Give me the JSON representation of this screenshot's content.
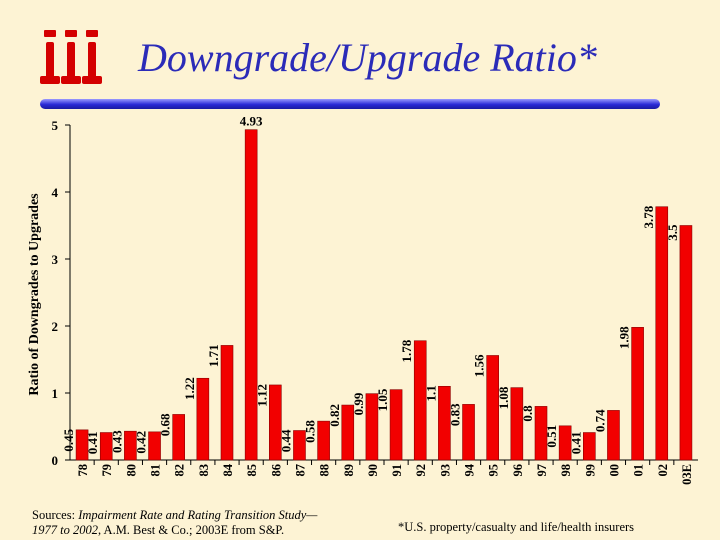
{
  "title": "Downgrade/Upgrade Ratio*",
  "logo_icon": "iii-logo-icon",
  "colors": {
    "bar": "#f20000",
    "bar_stroke": "#8a0000",
    "title": "#2b2bb8",
    "background": "#fdf3d4"
  },
  "chart_data": {
    "type": "bar",
    "title": "Downgrade/Upgrade Ratio*",
    "xlabel": "",
    "ylabel": "Ratio of Downgrades to Upgrades",
    "ylim": [
      0,
      5
    ],
    "yticks": [
      0,
      1,
      2,
      3,
      4,
      5
    ],
    "grid": false,
    "categories": [
      "78",
      "79",
      "80",
      "81",
      "82",
      "83",
      "84",
      "85",
      "86",
      "87",
      "88",
      "89",
      "90",
      "91",
      "92",
      "93",
      "94",
      "95",
      "96",
      "97",
      "98",
      "99",
      "00",
      "01",
      "02",
      "03E"
    ],
    "values": [
      0.45,
      0.41,
      0.43,
      0.42,
      0.68,
      1.22,
      1.71,
      4.93,
      1.12,
      0.44,
      0.58,
      0.82,
      0.99,
      1.05,
      1.78,
      1.1,
      0.83,
      1.56,
      1.08,
      0.8,
      0.51,
      0.41,
      0.74,
      1.98,
      3.78,
      3.5
    ],
    "labels": [
      "0.45",
      "0.41",
      "0.43",
      "0.42",
      "0.68",
      "1.22",
      "1.71",
      "4.93",
      "1.12",
      "0.44",
      "0.58",
      "0.82",
      "0.99",
      "1.05",
      "1.78",
      "1.1",
      "0.83",
      "1.56",
      "1.08",
      "0.8",
      "0.51",
      "0.41",
      "0.74",
      "1.98",
      "3.78",
      "3.5"
    ]
  },
  "footer": {
    "sources_prefix": "Sources: ",
    "sources_title": "Impairment Rate and Rating Transition Study—",
    "sources_years": "1977 to 2002",
    "sources_rest": ", A.M. Best & Co.; 2003E from S&P.",
    "footnote": "*U.S. property/casualty and life/health insurers"
  }
}
